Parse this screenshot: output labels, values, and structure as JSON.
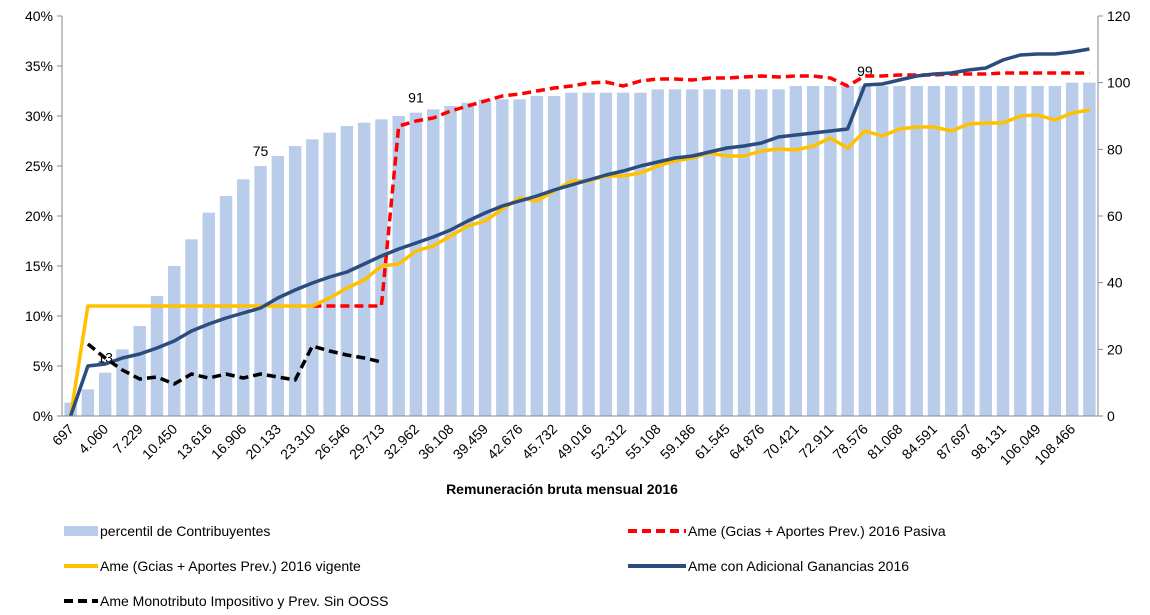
{
  "chart_data": {
    "type": "combo",
    "x_label": "Remuneración bruta mensual 2016",
    "categories": [
      "697",
      null,
      "4.060",
      null,
      "7.229",
      null,
      "10.450",
      null,
      "13.616",
      null,
      "16.906",
      null,
      "20.133",
      null,
      "23.310",
      null,
      "26.546",
      null,
      "29.713",
      null,
      "32.962",
      null,
      "36.108",
      null,
      "39.459",
      null,
      "42.676",
      null,
      "45.732",
      null,
      "49.016",
      null,
      "52.312",
      null,
      "55.108",
      null,
      "59.186",
      null,
      "61.545",
      null,
      "64.876",
      null,
      "70.421",
      null,
      "72.911",
      null,
      "78.576",
      null,
      "81.068",
      null,
      "84.591",
      null,
      "87.697",
      null,
      "98.131",
      null,
      "106.049",
      null,
      "108.466",
      null
    ],
    "ylim": [
      0,
      40
    ],
    "yticks": [
      {
        "value": 0,
        "label": "0%"
      },
      {
        "value": 5,
        "label": "5%"
      },
      {
        "value": 10,
        "label": "10%"
      },
      {
        "value": 15,
        "label": "15%"
      },
      {
        "value": 20,
        "label": "20%"
      },
      {
        "value": 25,
        "label": "25%"
      },
      {
        "value": 30,
        "label": "30%"
      },
      {
        "value": 35,
        "label": "35%"
      },
      {
        "value": 40,
        "label": "40%"
      }
    ],
    "y2lim": [
      0,
      120
    ],
    "y2ticks": [
      0,
      20,
      40,
      60,
      80,
      100,
      120
    ],
    "grid": false,
    "legend": "bottom",
    "series": [
      {
        "name": "percentil de Contribuyentes",
        "type": "bar",
        "axis": "y2",
        "color": "#b9cdeb",
        "values": [
          4,
          8,
          13,
          20,
          27,
          36,
          45,
          53,
          61,
          66,
          71,
          75,
          78,
          81,
          83,
          85,
          87,
          88,
          89,
          90,
          91,
          92,
          93,
          94,
          95,
          95,
          95,
          96,
          96,
          97,
          97,
          97,
          97,
          97,
          98,
          98,
          98,
          98,
          98,
          98,
          98,
          98,
          99,
          99,
          99,
          99,
          99,
          99,
          99,
          99,
          99,
          99,
          99,
          99,
          99,
          99,
          99,
          99,
          100,
          100
        ],
        "value_labels": [
          null,
          null,
          "13",
          null,
          null,
          null,
          null,
          null,
          null,
          null,
          null,
          "75",
          null,
          null,
          null,
          null,
          null,
          null,
          null,
          null,
          "91",
          null,
          null,
          null,
          null,
          null,
          null,
          null,
          null,
          null,
          null,
          null,
          null,
          null,
          null,
          null,
          null,
          null,
          null,
          null,
          null,
          null,
          null,
          null,
          null,
          null,
          "99",
          null,
          null,
          null,
          null,
          null,
          null,
          null,
          null,
          null,
          null,
          null,
          null,
          null
        ]
      },
      {
        "name": "Ame (Gcias + Aportes Prev.) 2016 Pasiva",
        "type": "line",
        "dash": true,
        "color": "#ff0000",
        "values": [
          null,
          null,
          null,
          null,
          null,
          null,
          null,
          null,
          null,
          null,
          null,
          null,
          null,
          null,
          11,
          11,
          11,
          11,
          11,
          29,
          29.5,
          29.8,
          30.5,
          31,
          31.5,
          32,
          32.2,
          32.5,
          32.8,
          33,
          33.3,
          33.4,
          33,
          33.5,
          33.7,
          33.7,
          33.6,
          33.8,
          33.8,
          33.9,
          34,
          33.9,
          34,
          34,
          33.8,
          33,
          34,
          34,
          34.1,
          34.1,
          34.1,
          34.2,
          34.2,
          34.2,
          34.3,
          34.3,
          34.3,
          34.3,
          34.3,
          34.3
        ]
      },
      {
        "name": "Ame (Gcias + Aportes Prev.) 2016 vigente",
        "type": "line",
        "dash": false,
        "color": "#ffc000",
        "values": [
          0,
          11,
          11,
          11,
          11,
          11,
          11,
          11,
          11,
          11,
          11,
          11,
          11,
          11,
          11,
          11.8,
          12.8,
          13.6,
          15,
          15.2,
          16.5,
          17,
          18,
          19,
          19.5,
          20.7,
          21.8,
          21.5,
          22.5,
          23.5,
          23.5,
          24,
          24,
          24.3,
          25,
          25.5,
          25.8,
          26.3,
          26,
          26,
          26.5,
          26.7,
          26.6,
          27,
          27.8,
          26.8,
          28.5,
          28,
          28.7,
          28.9,
          28.9,
          28.5,
          29.2,
          29.3,
          29.3,
          30,
          30.1,
          29.6,
          30.3,
          30.6
        ]
      },
      {
        "name": "Ame con Adicional Ganancias 2016",
        "type": "line",
        "dash": false,
        "color": "#2b4d7e",
        "values": [
          0,
          5,
          5.2,
          5.8,
          6.2,
          6.8,
          7.5,
          8.5,
          9.2,
          9.8,
          10.3,
          10.8,
          11.8,
          12.6,
          13.3,
          13.9,
          14.4,
          15.2,
          16,
          16.7,
          17.3,
          17.9,
          18.6,
          19.5,
          20.3,
          21,
          21.5,
          22,
          22.6,
          23.1,
          23.6,
          24.1,
          24.5,
          25,
          25.4,
          25.8,
          26,
          26.4,
          26.8,
          27,
          27.3,
          27.9,
          28.1,
          28.3,
          28.5,
          28.7,
          33.1,
          33.2,
          33.6,
          34,
          34.2,
          34.3,
          34.6,
          34.8,
          35.6,
          36.1,
          36.2,
          36.2,
          36.4,
          36.7
        ]
      },
      {
        "name": "Ame Monotributo Impositivo y Prev. Sin OOSS",
        "type": "line",
        "dash": true,
        "color": "#000000",
        "values": [
          null,
          7.2,
          5.8,
          4.6,
          3.7,
          3.9,
          3.2,
          4.2,
          3.8,
          4.2,
          3.8,
          4.2,
          3.9,
          3.6,
          7,
          6.5,
          6.1,
          5.8,
          5.4,
          null,
          null,
          null,
          null,
          null,
          null,
          null,
          null,
          null,
          null,
          null,
          null,
          null,
          null,
          null,
          null,
          null,
          null,
          null,
          null,
          null,
          null,
          null,
          null,
          null,
          null,
          null,
          null,
          null,
          null,
          null,
          null,
          null,
          null,
          null,
          null,
          null,
          null,
          null,
          null,
          null
        ]
      }
    ]
  }
}
